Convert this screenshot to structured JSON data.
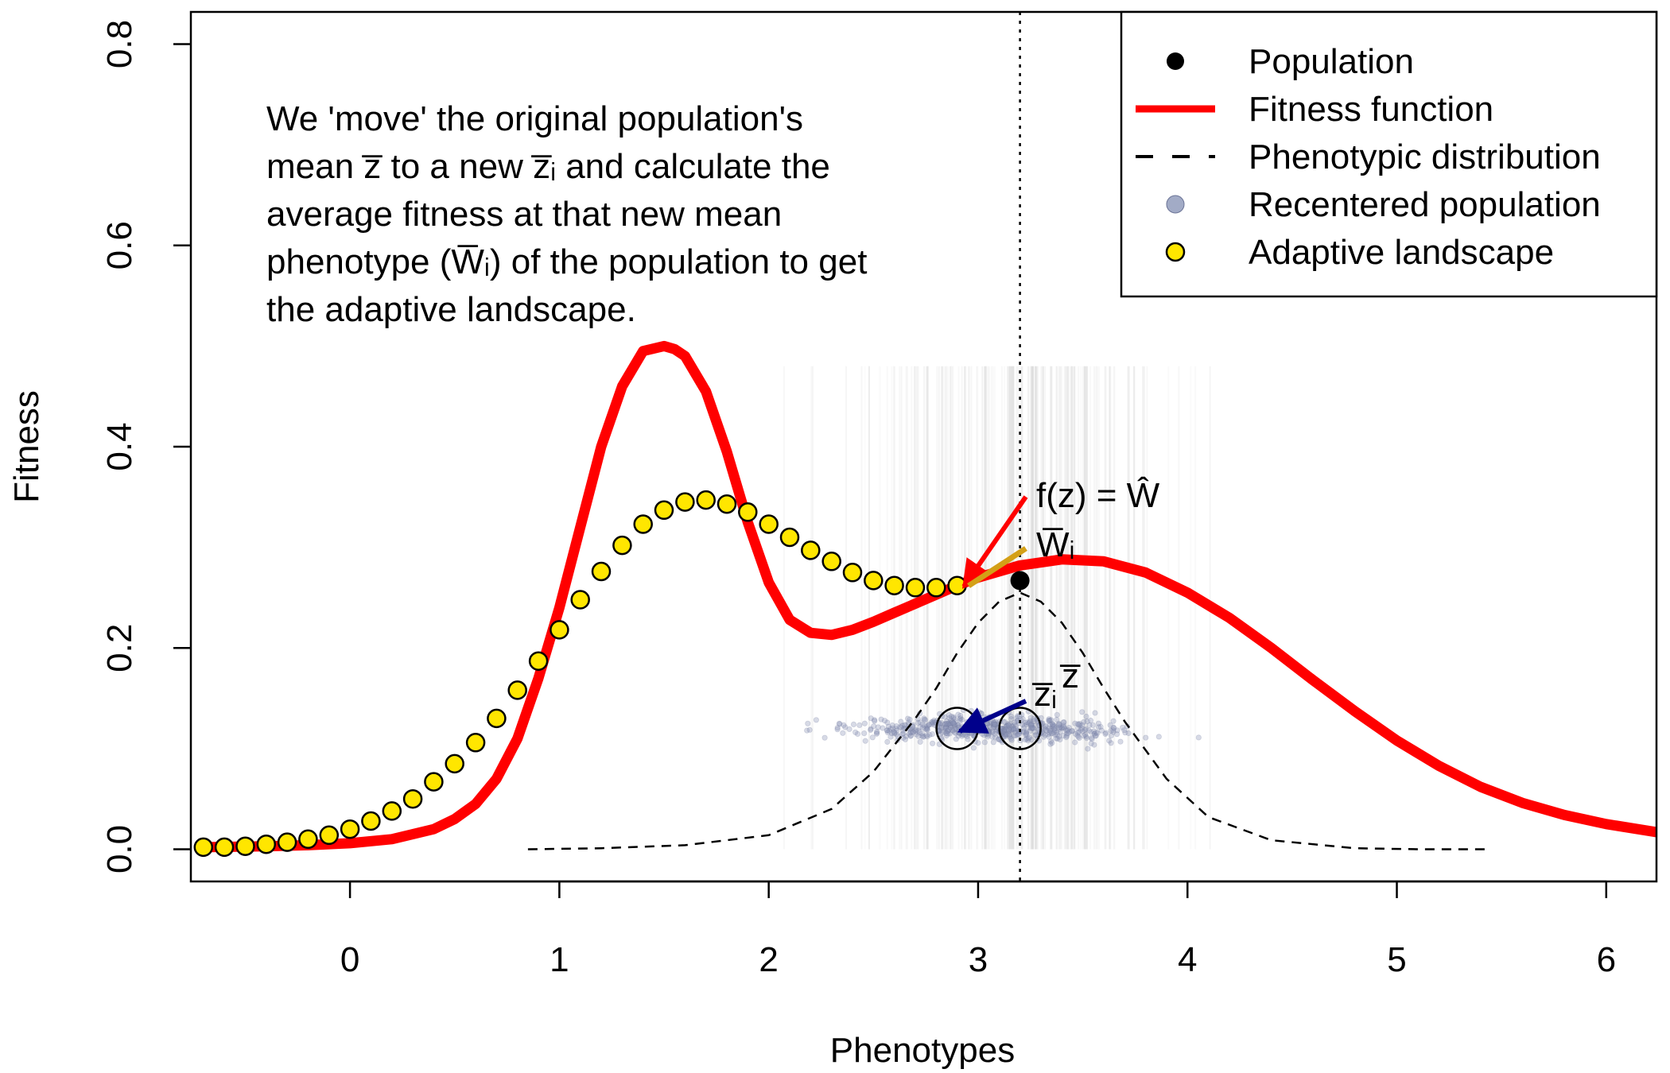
{
  "chart_data": {
    "type": "line",
    "title": "",
    "xlabel": "Phenotypes",
    "ylabel": "Fitness",
    "xlim": [
      -0.76,
      6.24
    ],
    "ylim": [
      -0.032,
      0.832
    ],
    "x_ticks": [
      0,
      1,
      2,
      3,
      4,
      5,
      6
    ],
    "y_ticks": [
      0.0,
      0.2,
      0.4,
      0.6,
      0.8
    ],
    "x_tick_labels": [
      "0",
      "1",
      "2",
      "3",
      "4",
      "5",
      "6"
    ],
    "y_tick_labels": [
      "0.0",
      "0.2",
      "0.4",
      "0.6",
      "0.8"
    ],
    "grid": false,
    "legend_position": "top-right",
    "legend": [
      {
        "label": "Population",
        "marker": "filled-circle",
        "color": "#000000"
      },
      {
        "label": "Fitness function",
        "marker": "thick-line",
        "color": "#ff0000"
      },
      {
        "label": "Phenotypic distribution",
        "marker": "dashed-line",
        "color": "#000000"
      },
      {
        "label": "Recentered population",
        "marker": "translucent-circle",
        "color": "#8b96b8"
      },
      {
        "label": "Adaptive landscape",
        "marker": "yellow-circle",
        "color": "#ffe600"
      }
    ],
    "annotation_lines": [
      "We 'move' the original population's",
      "mean z̅ to a new z̅ᵢ and calculate the",
      "average fitness at that new mean",
      "phenotype (W̅ᵢ) of the population to get",
      "the adaptive landscape."
    ],
    "labels": {
      "f_eq": "f(z) = Ŵ",
      "w_bar_i": "W̅ᵢ",
      "z_bar_i": "z̅ᵢ",
      "z_bar": "z̅"
    },
    "vertical_line_x": 3.2,
    "population_point": {
      "x": 3.2,
      "y": 0.267
    },
    "original_mean": {
      "x": 3.2,
      "y": 0.12
    },
    "recentered_mean": {
      "x": 2.9,
      "y": 0.12
    },
    "fitness_function": {
      "x": [
        -0.7,
        -0.4,
        -0.2,
        0.0,
        0.2,
        0.4,
        0.5,
        0.6,
        0.7,
        0.8,
        0.9,
        1.0,
        1.1,
        1.2,
        1.3,
        1.4,
        1.5,
        1.55,
        1.6,
        1.7,
        1.8,
        1.9,
        2.0,
        2.1,
        2.2,
        2.3,
        2.4,
        2.5,
        2.6,
        2.7,
        2.8,
        2.9,
        3.0,
        3.2,
        3.4,
        3.6,
        3.8,
        4.0,
        4.2,
        4.4,
        4.6,
        4.8,
        5.0,
        5.2,
        5.4,
        5.6,
        5.8,
        6.0,
        6.24
      ],
      "y": [
        0.002,
        0.003,
        0.004,
        0.006,
        0.01,
        0.02,
        0.03,
        0.045,
        0.07,
        0.11,
        0.17,
        0.24,
        0.32,
        0.4,
        0.46,
        0.495,
        0.5,
        0.497,
        0.49,
        0.455,
        0.395,
        0.325,
        0.265,
        0.228,
        0.215,
        0.213,
        0.218,
        0.226,
        0.235,
        0.244,
        0.253,
        0.262,
        0.27,
        0.282,
        0.288,
        0.286,
        0.275,
        0.255,
        0.23,
        0.2,
        0.168,
        0.137,
        0.108,
        0.083,
        0.062,
        0.046,
        0.034,
        0.025,
        0.017
      ]
    },
    "phenotypic_distribution": {
      "x": [
        0.85,
        1.2,
        1.6,
        2.0,
        2.3,
        2.5,
        2.7,
        2.8,
        2.9,
        3.0,
        3.1,
        3.2,
        3.3,
        3.4,
        3.5,
        3.6,
        3.7,
        3.9,
        4.1,
        4.4,
        4.8,
        5.1,
        5.45
      ],
      "y": [
        0.0,
        0.001,
        0.004,
        0.014,
        0.04,
        0.077,
        0.13,
        0.16,
        0.195,
        0.225,
        0.246,
        0.255,
        0.246,
        0.225,
        0.195,
        0.16,
        0.127,
        0.07,
        0.032,
        0.009,
        0.001,
        0.0,
        0.0
      ]
    },
    "adaptive_landscape": {
      "x": [
        -0.7,
        -0.6,
        -0.5,
        -0.4,
        -0.3,
        -0.2,
        -0.1,
        0.0,
        0.1,
        0.2,
        0.3,
        0.4,
        0.5,
        0.6,
        0.7,
        0.8,
        0.9,
        1.0,
        1.1,
        1.2,
        1.3,
        1.4,
        1.5,
        1.6,
        1.7,
        1.8,
        1.9,
        2.0,
        2.1,
        2.2,
        2.3,
        2.4,
        2.5,
        2.6,
        2.7,
        2.8,
        2.9
      ],
      "y": [
        0.002,
        0.002,
        0.003,
        0.005,
        0.007,
        0.01,
        0.014,
        0.02,
        0.028,
        0.038,
        0.05,
        0.067,
        0.085,
        0.106,
        0.13,
        0.158,
        0.187,
        0.218,
        0.248,
        0.276,
        0.302,
        0.323,
        0.337,
        0.345,
        0.347,
        0.343,
        0.335,
        0.323,
        0.31,
        0.297,
        0.286,
        0.275,
        0.267,
        0.262,
        0.26,
        0.26,
        0.262
      ]
    }
  }
}
